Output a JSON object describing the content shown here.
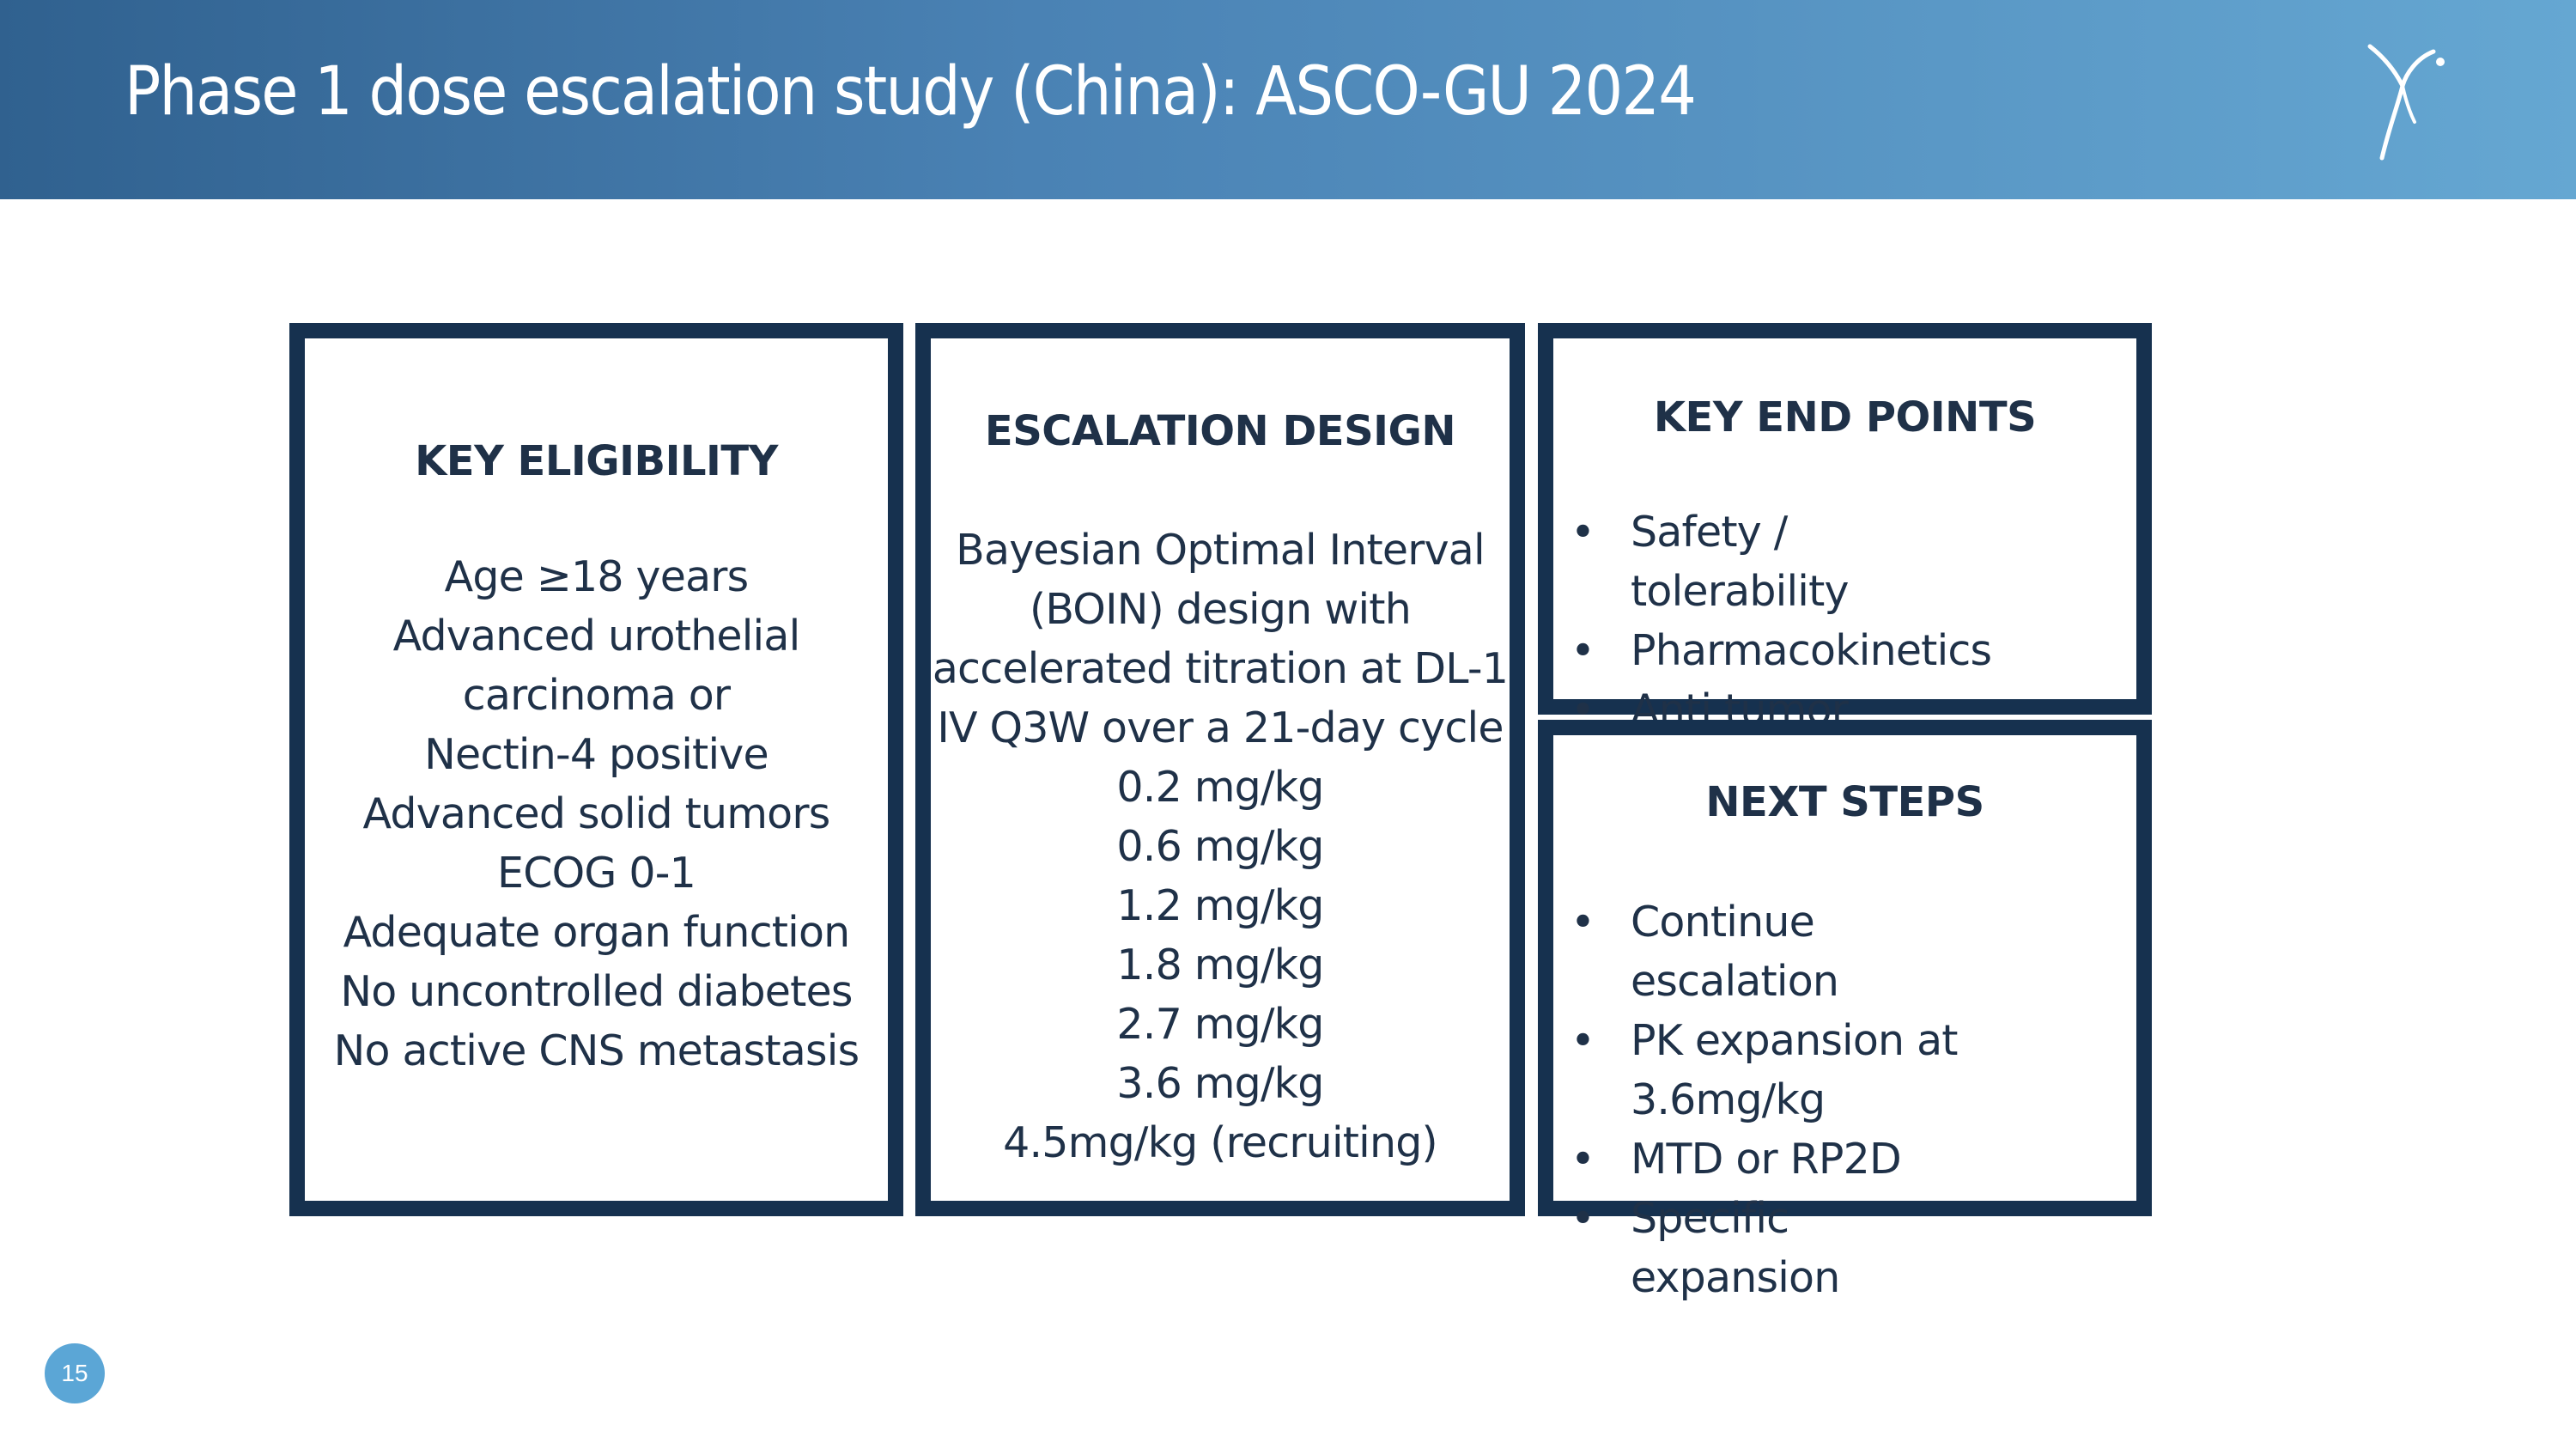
{
  "header": {
    "title": "Phase 1 dose escalation study (China): ASCO-GU 2024",
    "logo_icon": "figure-logo-icon"
  },
  "colors": {
    "header_gradient_start": "#30618f",
    "header_gradient_end": "#65a7d2",
    "box_border": "#16314f",
    "page_badge": "#5ba6d6"
  },
  "eligibility": {
    "title": "KEY ELIGIBILITY",
    "items": [
      "Age ≥18 years",
      "Advanced urothelial",
      "carcinoma or",
      "Nectin-4 positive",
      "Advanced solid tumors",
      "ECOG 0-1",
      "Adequate organ function",
      "No uncontrolled diabetes",
      "No active CNS metastasis"
    ]
  },
  "escalation": {
    "title": "ESCALATION DESIGN",
    "items": [
      "Bayesian Optimal Interval",
      "(BOIN) design with",
      "accelerated titration at DL-1",
      "IV Q3W over a 21-day cycle",
      "0.2 mg/kg",
      "0.6 mg/kg",
      "1.2 mg/kg",
      "1.8 mg/kg",
      "2.7 mg/kg",
      "3.6 mg/kg",
      "4.5mg/kg (recruiting)"
    ]
  },
  "endpoints": {
    "title": "KEY END POINTS",
    "items": [
      "Safety / tolerability",
      "Pharmacokinetics",
      "Anti tumor activity"
    ]
  },
  "next_steps": {
    "title": "NEXT STEPS",
    "items": [
      "Continue escalation",
      "PK expansion at 3.6mg/kg",
      "MTD or RP2D",
      "Specific expansion"
    ]
  },
  "bullet_char": "•",
  "page_number": "15"
}
